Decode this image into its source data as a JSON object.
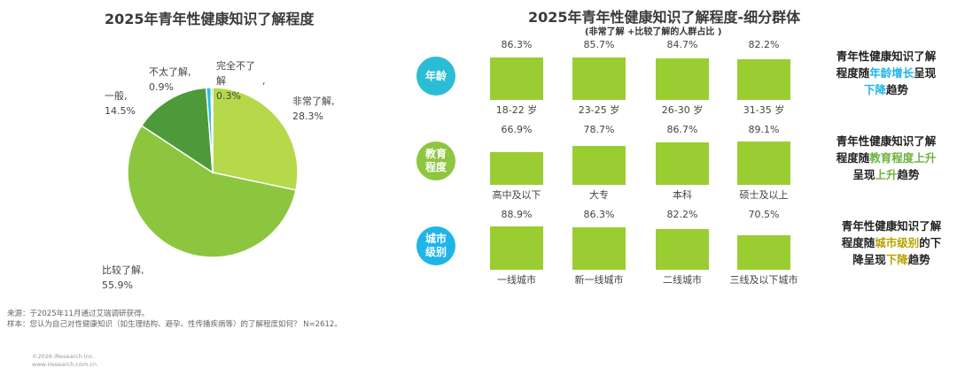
{
  "left": {
    "title": "2025年青年性健康知识了解程度",
    "source_line1": "来源：于2025年11月通过艾瑞调研获得。",
    "source_line2": "样本：您认为自己对性健康知识（如生理结构、避孕、性传播疾病等）的了解程度如何？ N=2612。",
    "copyright_line1": "©2026 iResearch Inc.",
    "copyright_line2": "www.iresearch.com.cn"
  },
  "right": {
    "title": "2025年青年性健康知识了解程度-细分群体",
    "subtitle": "(非常了解 +比较了解的人群占比 )",
    "groups": [
      {
        "label_line1": "年龄",
        "label_line2": "",
        "circle_color": "#2bbdd6",
        "categories": [
          "18-22 岁",
          "23-25 岁",
          "26-30 岁",
          "31-35 岁"
        ],
        "values": [
          "86.3%",
          "85.7%",
          "84.7%",
          "82.2%"
        ],
        "note": {
          "l1": "青年性健康知识了解",
          "l2a": "程度随",
          "l2hl": "年龄增长",
          "l2b": "呈现",
          "l3a": "",
          "l3hl": "下降",
          "l3b": "趋势"
        }
      },
      {
        "label_line1": "教育",
        "label_line2": "程度",
        "circle_color": "#8dc63f",
        "categories": [
          "高中及以下",
          "大专",
          "本科",
          "硕士及以上"
        ],
        "values": [
          "66.9%",
          "78.7%",
          "86.7%",
          "89.1%"
        ],
        "note": {
          "l1": "青年性健康知识了解",
          "l2a": "程度随",
          "l2hl": "教育程度上升",
          "l2b": "",
          "l3a": "呈现",
          "l3hl": "上升",
          "l3b": "趋势"
        }
      },
      {
        "label_line1": "城市",
        "label_line2": "级别",
        "circle_color": "#1fb5e8",
        "categories": [
          "一线城市",
          "新一线城市",
          "二线城市",
          "三线及以下城市"
        ],
        "values": [
          "88.9%",
          "86.3%",
          "82.2%",
          "70.5%"
        ],
        "note": {
          "l1": "青年性健康知识了解",
          "l2a": "程度随",
          "l2hl": "城市级别",
          "l2b": "的下",
          "l3a": "降呈现",
          "l3hl": "下降",
          "l3b": "趋势"
        }
      }
    ]
  },
  "chart_data": [
    {
      "type": "pie",
      "title": "2025年青年性健康知识了解程度",
      "slices": [
        {
          "label": "非常了解",
          "value": 28.3,
          "display": "28.3%",
          "color": "#b5d94a"
        },
        {
          "label": "比较了解",
          "value": 55.9,
          "display": "55.9%",
          "color": "#8cc63f"
        },
        {
          "label": "一般",
          "value": 14.5,
          "display": "14.5%",
          "color": "#4e9a3a"
        },
        {
          "label": "不太了解",
          "value": 0.9,
          "display": "0.9%",
          "color": "#2bbdd6"
        },
        {
          "label": "完全不了解",
          "value": 0.3,
          "display": "0.3%",
          "color": "#1a7fa8"
        }
      ]
    },
    {
      "type": "bar",
      "title": "2025年青年性健康知识了解程度-细分群体",
      "subtitle": "(非常了解 +比较了解的人群占比 )",
      "series": [
        {
          "categories": [
            "18-22 岁",
            "23-25 岁",
            "26-30 岁",
            "31-35 岁"
          ],
          "values": [
            86.3,
            85.7,
            84.7,
            82.2
          ]
        },
        {
          "categories": [
            "高中及以下",
            "大专",
            "本科",
            "硕士及以上"
          ],
          "values": [
            66.9,
            78.7,
            86.7,
            89.1
          ]
        },
        {
          "categories": [
            "一线城市",
            "新一线城市",
            "二线城市",
            "三线及以下城市"
          ],
          "values": [
            88.9,
            86.3,
            82.2,
            70.5
          ]
        }
      ],
      "bar_color": "#9acd32"
    }
  ]
}
